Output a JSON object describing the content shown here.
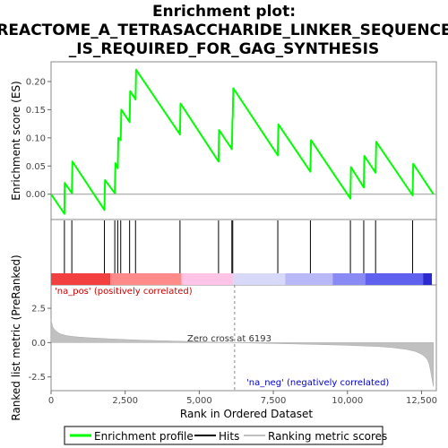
{
  "chart_data": {
    "type": "line",
    "title_lines": [
      "Enrichment plot:",
      "REACTOME_A_TETRASACCHARIDE_LINKER_SEQUENCE",
      "_IS_REQUIRED_FOR_GAG_SYNTHESIS"
    ],
    "es_panel": {
      "ylabel": "Enrichment score (ES)",
      "ylim": [
        -0.045,
        0.235
      ],
      "yticks": [
        "0.00",
        "0.05",
        "0.10",
        "0.15",
        "0.20"
      ],
      "ytick_values": [
        0.0,
        0.05,
        0.1,
        0.15,
        0.2
      ],
      "series": [
        {
          "color": "#00ff00",
          "x": [
            0,
            450,
            460,
            700,
            720,
            1800,
            1820,
            2150,
            2170,
            2250,
            2270,
            2350,
            2370,
            2650,
            2670,
            2850,
            2870,
            4350,
            4370,
            5650,
            5670,
            6100,
            6120,
            6130,
            6150,
            7650,
            7670,
            8750,
            8770,
            10100,
            10120,
            10550,
            10570,
            10950,
            10970,
            12200,
            12220,
            12900
          ],
          "values": [
            0.0,
            -0.035,
            0.02,
            0.002,
            0.058,
            -0.028,
            0.025,
            0.002,
            0.055,
            0.046,
            0.1,
            0.096,
            0.15,
            0.128,
            0.183,
            0.168,
            0.221,
            0.106,
            0.161,
            0.058,
            0.114,
            0.08,
            0.13,
            0.14,
            0.188,
            0.069,
            0.124,
            0.04,
            0.096,
            -0.008,
            0.048,
            0.012,
            0.068,
            0.038,
            0.093,
            -0.002,
            0.054,
            0.0
          ]
        }
      ]
    },
    "hits": [
      450,
      700,
      1800,
      2150,
      2250,
      2350,
      2650,
      2850,
      4350,
      5650,
      6100,
      6130,
      7650,
      8750,
      10100,
      10550,
      10950,
      12200
    ],
    "ranking_panel": {
      "ylabel": "Ranked list metric (PreRanked)",
      "ylim": [
        -3.5,
        4.2
      ],
      "yticks": [
        "2.5",
        "0.0",
        "-2.5"
      ],
      "ytick_values": [
        2.5,
        0.0,
        -2.5
      ],
      "x": [
        0,
        50,
        150,
        300,
        500,
        800,
        1200,
        2000,
        3000,
        4000,
        5000,
        6193,
        7000,
        8000,
        9000,
        10000,
        11000,
        11500,
        12000,
        12300,
        12500,
        12600,
        12700,
        12750,
        12800,
        12850,
        12900
      ],
      "values": [
        1.7,
        1.15,
        0.85,
        0.65,
        0.52,
        0.43,
        0.36,
        0.27,
        0.18,
        0.12,
        0.06,
        0.0,
        -0.04,
        -0.09,
        -0.14,
        -0.2,
        -0.28,
        -0.36,
        -0.5,
        -0.65,
        -0.85,
        -1.0,
        -1.25,
        -1.5,
        -2.0,
        -2.6,
        -3.2
      ],
      "fill_color": "#c0c0c0",
      "zero_cross_label": "Zero cross at 6193",
      "zero_cross": 6193,
      "pos_label": "'na_pos' (positively correlated)",
      "neg_label": "'na_neg' (negatively correlated)",
      "pos_color": "#cc0000",
      "neg_color": "#0000cc"
    },
    "colorbar_segments": [
      {
        "from": 0,
        "to": 2000,
        "color": "#f24040"
      },
      {
        "from": 2000,
        "to": 4400,
        "color": "#ff8a8a"
      },
      {
        "from": 4400,
        "to": 6150,
        "color": "#ffc4e6"
      },
      {
        "from": 6150,
        "to": 7900,
        "color": "#d8d8f8"
      },
      {
        "from": 7900,
        "to": 9500,
        "color": "#b8b8f8"
      },
      {
        "from": 9500,
        "to": 10600,
        "color": "#8a8af4"
      },
      {
        "from": 10600,
        "to": 12550,
        "color": "#6060ee"
      },
      {
        "from": 12550,
        "to": 12850,
        "color": "#2a2ad0"
      }
    ],
    "xaxis": {
      "label": "Rank in Ordered Dataset",
      "xlim": [
        0,
        13000
      ],
      "ticks": [
        "0",
        "2,500",
        "5,000",
        "7,500",
        "10,000",
        "12,500"
      ],
      "tick_values": [
        0,
        2500,
        5000,
        7500,
        10000,
        12500
      ]
    },
    "legend": {
      "placement": "bottom",
      "entries": [
        {
          "label": "Enrichment profile",
          "color": "#00ff00"
        },
        {
          "label": "Hits",
          "color": "#000000"
        },
        {
          "label": "Ranking metric scores",
          "color": "#c0c0c0"
        }
      ]
    }
  }
}
